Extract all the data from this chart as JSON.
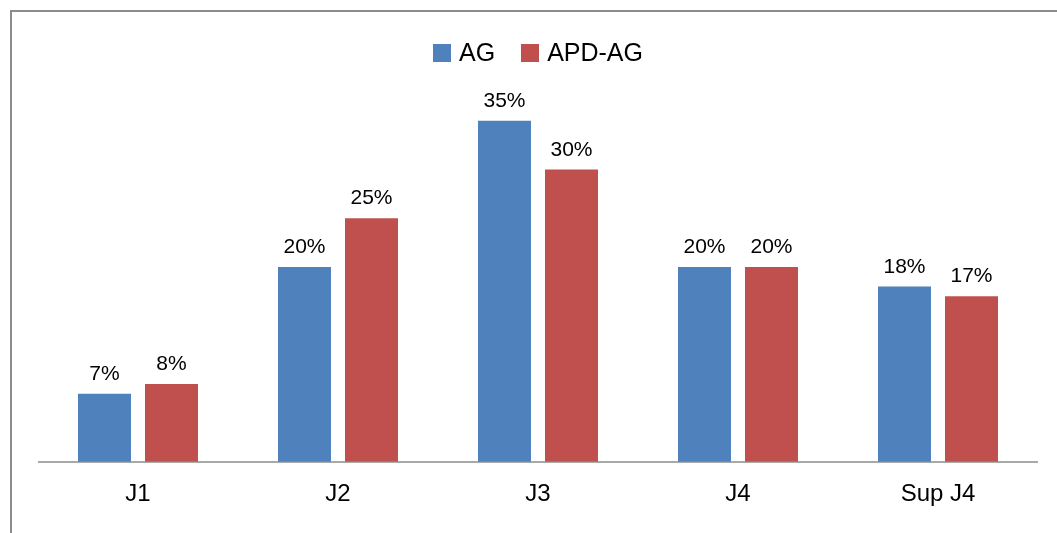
{
  "chart_data": {
    "type": "bar",
    "categories": [
      "J1",
      "J2",
      "J3",
      "J4",
      "Sup J4"
    ],
    "series": [
      {
        "name": "AG",
        "color": "#4f81bd",
        "values": [
          7,
          20,
          35,
          20,
          18
        ],
        "value_labels": [
          "7%",
          "20%",
          "35%",
          "20%",
          "18%"
        ]
      },
      {
        "name": "APD-AG",
        "color": "#c0504d",
        "values": [
          8,
          25,
          30,
          20,
          17
        ],
        "value_labels": [
          "8%",
          "25%",
          "30%",
          "20%",
          "17%"
        ]
      }
    ],
    "legend": "top",
    "tick_labels": "x"
  }
}
